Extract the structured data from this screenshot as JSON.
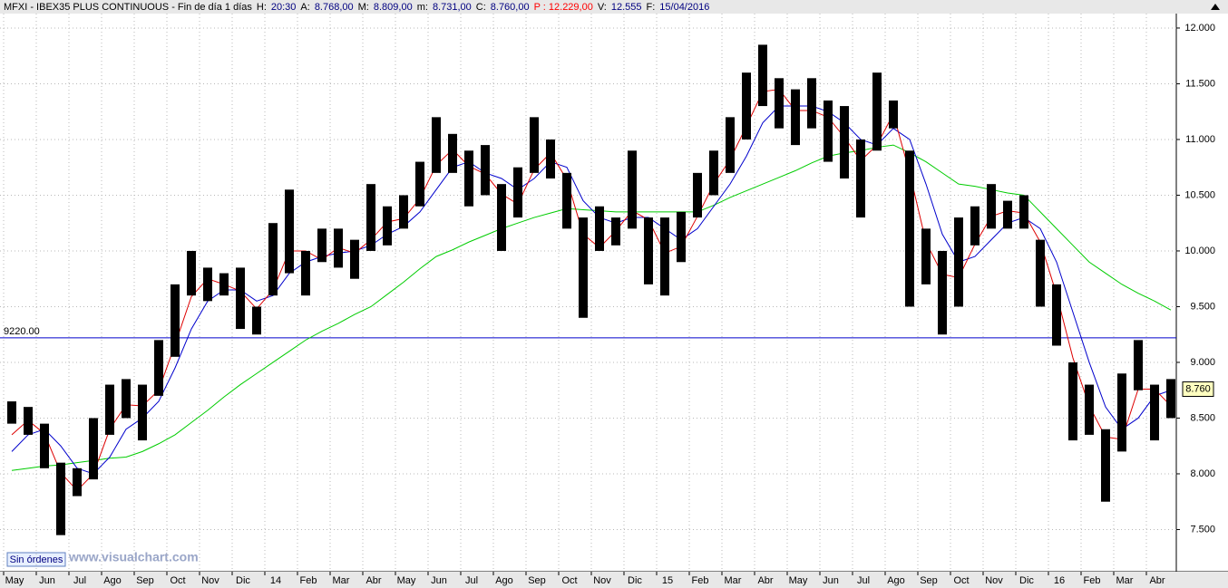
{
  "chart_data": {
    "type": "hilo",
    "title_segments": [
      {
        "text": "MFXI - IBEX35 PLUS CONTINUOUS - Fin de día 1 días",
        "color": "#000000"
      },
      {
        "text": "H:",
        "color": "#000000"
      },
      {
        "text": "20:30",
        "color": "#000080"
      },
      {
        "text": "A:",
        "color": "#000000"
      },
      {
        "text": "8.768,00",
        "color": "#000080"
      },
      {
        "text": "M:",
        "color": "#000000"
      },
      {
        "text": "8.809,00",
        "color": "#000080"
      },
      {
        "text": "m:",
        "color": "#000000"
      },
      {
        "text": "8.731,00",
        "color": "#000080"
      },
      {
        "text": "C:",
        "color": "#000000"
      },
      {
        "text": "8.760,00",
        "color": "#000080"
      },
      {
        "text": "P : 12.229,00",
        "color": "#ff0000"
      },
      {
        "text": "V:",
        "color": "#000000"
      },
      {
        "text": "12.555",
        "color": "#000080"
      },
      {
        "text": "F:",
        "color": "#000000"
      },
      {
        "text": "15/04/2016",
        "color": "#000080"
      }
    ],
    "categories": [
      "May",
      null,
      "Jun",
      null,
      "Jul",
      null,
      "Ago",
      null,
      "Sep",
      null,
      "Oct",
      null,
      "Nov",
      null,
      "Dic",
      null,
      "14",
      null,
      "Feb",
      null,
      "Mar",
      null,
      "Abr",
      null,
      "May",
      null,
      "Jun",
      null,
      "Jul",
      null,
      "Ago",
      null,
      "Sep",
      null,
      "Oct",
      null,
      "Nov",
      null,
      "Dic",
      null,
      "15",
      null,
      "Feb",
      null,
      "Mar",
      null,
      "Abr",
      null,
      "May",
      null,
      "Jun",
      null,
      "Jul",
      null,
      "Ago",
      null,
      "Sep",
      null,
      "Oct",
      null,
      "Nov",
      null,
      "Dic",
      null,
      "16",
      null,
      "Feb",
      null,
      "Mar",
      null,
      "Abr",
      null
    ],
    "color": "#000000",
    "highs": [
      8650,
      8600,
      8450,
      8100,
      8050,
      8500,
      8800,
      8850,
      8800,
      9200,
      9700,
      10000,
      9850,
      9800,
      9850,
      9500,
      10250,
      10550,
      10000,
      10200,
      10200,
      10100,
      10600,
      10400,
      10500,
      10800,
      11200,
      11050,
      10900,
      10950,
      10600,
      10750,
      11200,
      11000,
      10700,
      10300,
      10400,
      10300,
      10900,
      10300,
      10300,
      10350,
      10700,
      10900,
      11200,
      11600,
      11850,
      11550,
      11450,
      11550,
      11350,
      11300,
      11000,
      11600,
      11350,
      10900,
      10200,
      10000,
      10300,
      10400,
      10600,
      10450,
      10500,
      10100,
      9700,
      9000,
      8800,
      8400,
      8900,
      9200,
      8800,
      8850
    ],
    "lows": [
      8450,
      8350,
      8050,
      7450,
      7800,
      7950,
      8350,
      8500,
      8300,
      8700,
      9050,
      9600,
      9550,
      9600,
      9300,
      9250,
      9600,
      9800,
      9600,
      9900,
      9850,
      9750,
      10000,
      10050,
      10200,
      10400,
      10700,
      10700,
      10400,
      10500,
      10000,
      10300,
      10700,
      10650,
      10200,
      9400,
      10000,
      10050,
      10200,
      9700,
      9600,
      9900,
      10300,
      10500,
      10700,
      11000,
      11300,
      11100,
      10950,
      11100,
      10800,
      10650,
      10300,
      10900,
      11100,
      9500,
      9700,
      9250,
      9500,
      10050,
      10200,
      10200,
      10200,
      9500,
      9150,
      8300,
      8350,
      7750,
      8200,
      8750,
      8300,
      8500
    ],
    "series": [
      {
        "color": "#00cc00",
        "values": [
          8030,
          8050,
          8070,
          8080,
          8100,
          8120,
          8140,
          8150,
          8200,
          8270,
          8350,
          8460,
          8570,
          8690,
          8800,
          8900,
          9000,
          9100,
          9200,
          9280,
          9350,
          9430,
          9500,
          9610,
          9720,
          9840,
          9950,
          10010,
          10080,
          10140,
          10200,
          10250,
          10300,
          10340,
          10380,
          10370,
          10360,
          10350,
          10350,
          10350,
          10350,
          10350,
          10350,
          10410,
          10480,
          10540,
          10600,
          10660,
          10720,
          10790,
          10850,
          10880,
          10900,
          10930,
          10950,
          10880,
          10800,
          10700,
          10600,
          10580,
          10550,
          10520,
          10500,
          10350,
          10200,
          10050,
          9900,
          9800,
          9700,
          9620,
          9550,
          9470
        ]
      },
      {
        "color": "#0000cc",
        "values": [
          8200,
          8350,
          8400,
          8250,
          8050,
          8000,
          8150,
          8400,
          8500,
          8650,
          8950,
          9300,
          9550,
          9650,
          9650,
          9550,
          9600,
          9800,
          9900,
          9950,
          9980,
          10000,
          10050,
          10150,
          10220,
          10350,
          10550,
          10750,
          10800,
          10700,
          10650,
          10550,
          10650,
          10800,
          10750,
          10450,
          10300,
          10250,
          10300,
          10300,
          10200,
          10100,
          10200,
          10400,
          10600,
          10850,
          11150,
          11300,
          11300,
          11300,
          11250,
          11150,
          11000,
          10950,
          11100,
          11000,
          10600,
          10150,
          9900,
          9950,
          10100,
          10250,
          10300,
          10200,
          9900,
          9450,
          9000,
          8600,
          8400,
          8500,
          8700,
          8750
        ]
      },
      {
        "color": "#dd0000",
        "values": [
          8350,
          8480,
          8360,
          8010,
          7850,
          8000,
          8400,
          8620,
          8610,
          8750,
          9160,
          9590,
          9750,
          9700,
          9640,
          9480,
          9650,
          10000,
          10000,
          9920,
          10030,
          9980,
          10100,
          10260,
          10290,
          10470,
          10770,
          10910,
          10760,
          10690,
          10510,
          10420,
          10730,
          10880,
          10640,
          10150,
          10030,
          10180,
          10360,
          10280,
          9980,
          10040,
          10310,
          10600,
          10820,
          11120,
          11430,
          11450,
          11260,
          11260,
          11200,
          11020,
          10810,
          10950,
          11230,
          10700,
          10080,
          9790,
          9760,
          10060,
          10310,
          10360,
          10340,
          10080,
          9610,
          9040,
          8610,
          8330,
          8310,
          8760,
          8760,
          8610
        ]
      }
    ],
    "hline": {
      "value": 9220,
      "label": "9220.00",
      "color": "#0000cc"
    },
    "last_price": {
      "value": 8760,
      "label": "8.760"
    },
    "ylim": [
      7125,
      12150
    ],
    "yticks": [
      {
        "value": 7500,
        "label": "7.500"
      },
      {
        "value": 8000,
        "label": "8.000"
      },
      {
        "value": 8500,
        "label": "8.500"
      },
      {
        "value": 9000,
        "label": "9.000"
      },
      {
        "value": 9500,
        "label": "9.500"
      },
      {
        "value": 10000,
        "label": "10.000"
      },
      {
        "value": 10500,
        "label": "10.500"
      },
      {
        "value": 11000,
        "label": "11.000"
      },
      {
        "value": 11500,
        "label": "11.500"
      },
      {
        "value": 12000,
        "label": "12.000"
      }
    ],
    "grid": true
  },
  "footer": {
    "watermark": "www.visualchart.com",
    "status": "Sin órdenes"
  }
}
